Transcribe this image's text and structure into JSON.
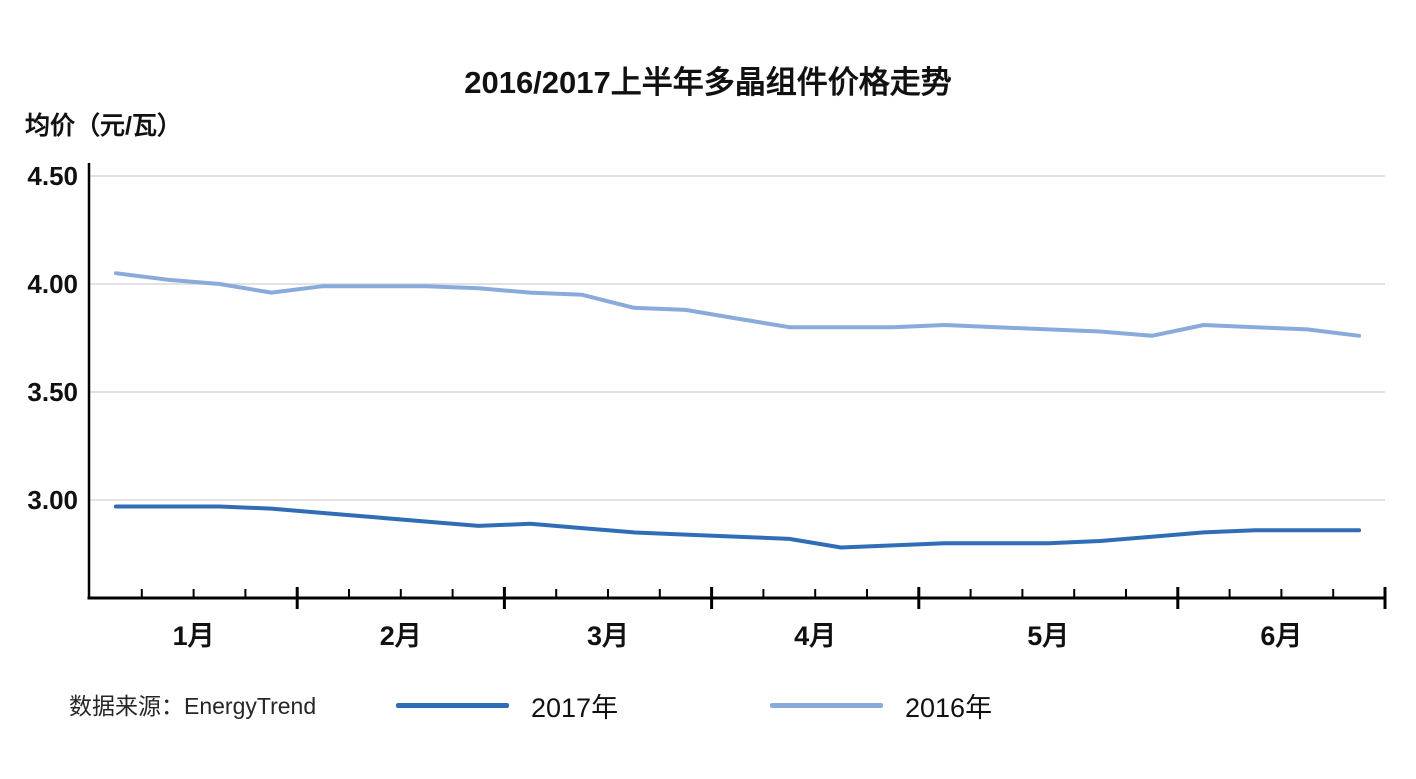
{
  "chart_data": {
    "type": "line",
    "title": "2016/2017上半年多晶组件价格走势",
    "y_axis_title": "均价（元/瓦）",
    "source": "数据来源：EnergyTrend",
    "grid": "horizontal",
    "legend_position": "bottom",
    "ylim": [
      2.55,
      4.5
    ],
    "y_ticks": [
      {
        "label": "4.50",
        "value": 4.5
      },
      {
        "label": "4.00",
        "value": 4.0
      },
      {
        "label": "3.50",
        "value": 3.5
      },
      {
        "label": "3.00",
        "value": 3.0
      }
    ],
    "x_unit": "week",
    "months": [
      {
        "label": "1月",
        "weeks": 4
      },
      {
        "label": "2月",
        "weeks": 4
      },
      {
        "label": "3月",
        "weeks": 4
      },
      {
        "label": "4月",
        "weeks": 4
      },
      {
        "label": "5月",
        "weeks": 5
      },
      {
        "label": "6月",
        "weeks": 4
      }
    ],
    "series": [
      {
        "name": "2017年",
        "color": "#2F6EB6",
        "values": [
          2.97,
          2.97,
          2.97,
          2.96,
          2.94,
          2.92,
          2.9,
          2.88,
          2.89,
          2.87,
          2.85,
          2.84,
          2.83,
          2.82,
          2.78,
          2.79,
          2.8,
          2.8,
          2.8,
          2.81,
          2.83,
          2.85,
          2.86,
          2.86,
          2.86
        ]
      },
      {
        "name": "2016年",
        "color": "#88ABDB",
        "values": [
          4.05,
          4.02,
          4.0,
          3.96,
          3.99,
          3.99,
          3.99,
          3.98,
          3.96,
          3.95,
          3.89,
          3.88,
          3.84,
          3.8,
          3.8,
          3.8,
          3.81,
          3.8,
          3.79,
          3.78,
          3.76,
          3.81,
          3.8,
          3.79,
          3.76
        ]
      }
    ]
  }
}
